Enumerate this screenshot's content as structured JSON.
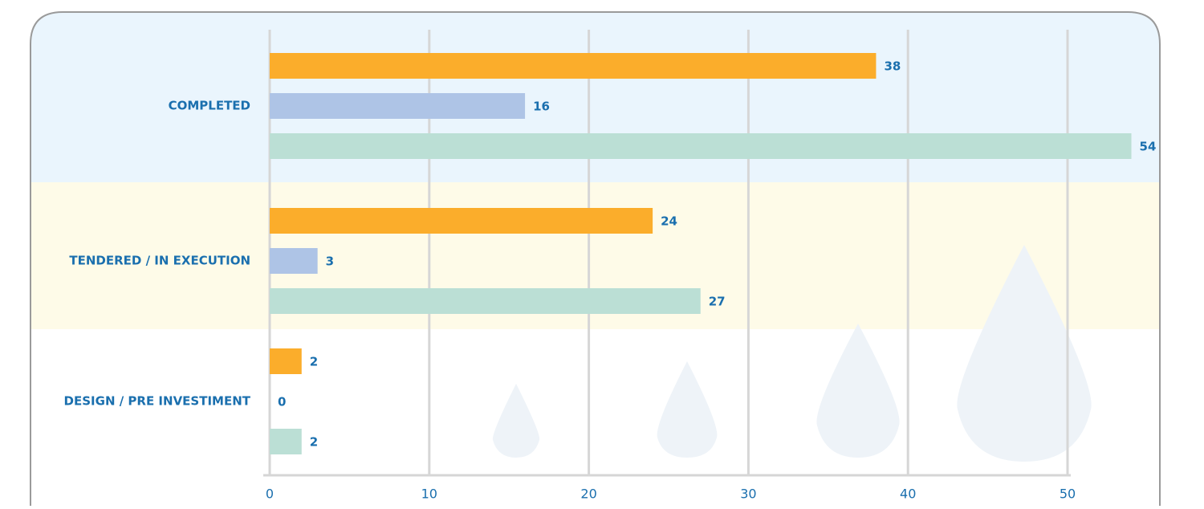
{
  "chart_data": {
    "type": "hbar",
    "categories": [
      "COMPLETED",
      "TENDERED / IN EXECUTION",
      "DESIGN / PRE INVESTIMENT"
    ],
    "series": [
      {
        "color": "#fbad2b",
        "values": [
          38,
          24,
          2
        ]
      },
      {
        "color": "#aec4e6",
        "values": [
          16,
          3,
          0
        ]
      },
      {
        "color": "#bbdfd5",
        "values": [
          54,
          27,
          2
        ]
      }
    ],
    "xlim": [
      0,
      50
    ],
    "xticks": [
      0,
      10,
      20,
      30,
      40,
      50
    ],
    "grid": true
  }
}
